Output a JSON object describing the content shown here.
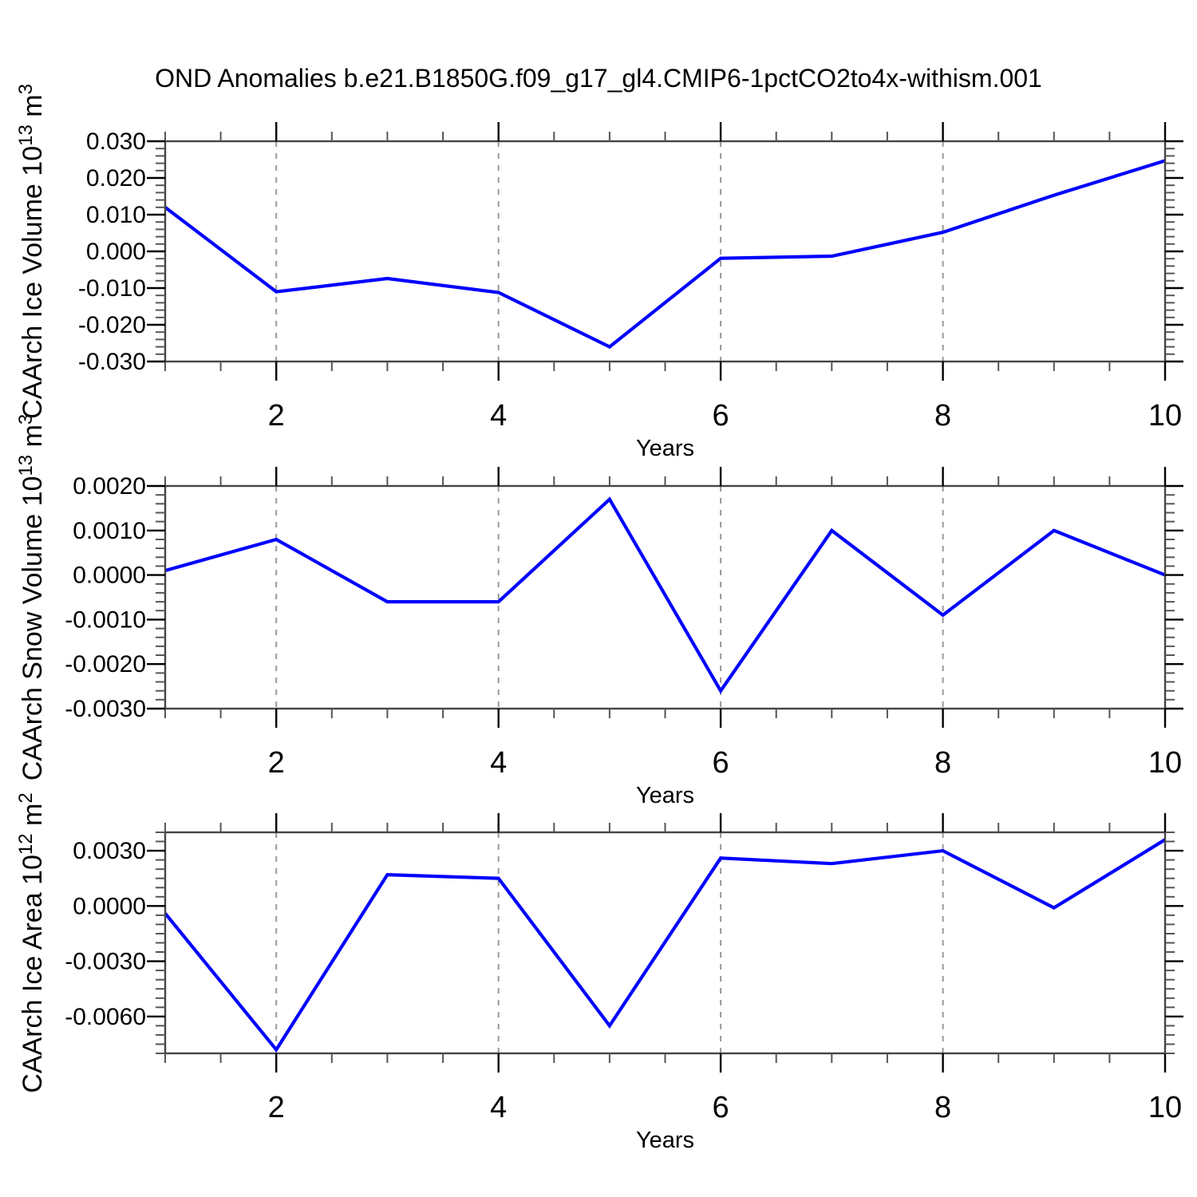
{
  "title": "OND Anomalies b.e21.B1850G.f09_g17_gl4.CMIP6-1pctCO2to4x-withism.001",
  "colors": {
    "line": "#0000ff",
    "grid": "#999999",
    "frame": "#444444",
    "tick_major": "#000000",
    "tick_minor": "#555555",
    "text": "#000000"
  },
  "chart_data": [
    {
      "id": "ice-volume",
      "type": "line",
      "ylabel": "CAArch Ice Volume 10^13 m^3",
      "ylabel_rich": [
        {
          "t": "CAArch Ice Volume 10"
        },
        {
          "t": "13",
          "sup": true
        },
        {
          "t": " m"
        },
        {
          "t": "3",
          "sup": true
        }
      ],
      "xlabel": "Years",
      "x": [
        1,
        2,
        3,
        4,
        5,
        6,
        7,
        8,
        9,
        10
      ],
      "values": [
        0.012,
        -0.011,
        -0.0074,
        -0.0112,
        -0.026,
        -0.0019,
        -0.0013,
        0.0052,
        0.0153,
        0.0247
      ],
      "xlim": [
        1,
        10
      ],
      "ylim": [
        -0.03,
        0.03
      ],
      "yticks": {
        "values": [
          0.03,
          0.02,
          0.01,
          0,
          -0.01,
          -0.02,
          -0.03
        ],
        "labels": [
          "0.030",
          "0.020",
          "0.010",
          "0.000",
          "-0.010",
          "-0.020",
          "-0.030"
        ],
        "minor_step": 0.002
      },
      "xticks": {
        "values": [
          2,
          4,
          6,
          8,
          10
        ],
        "labels": [
          "2",
          "4",
          "6",
          "8",
          "10"
        ],
        "minor_step": 0.5
      },
      "grid_x": [
        2,
        4,
        6,
        8
      ],
      "grid_y": []
    },
    {
      "id": "snow-volume",
      "type": "line",
      "ylabel": "CAArch Snow Volume 10^13 m^3",
      "ylabel_rich": [
        {
          "t": "CAArch Snow Volume 10"
        },
        {
          "t": "13",
          "sup": true
        },
        {
          "t": " m"
        },
        {
          "t": "3",
          "sup": true
        }
      ],
      "xlabel": "Years",
      "x": [
        1,
        2,
        3,
        4,
        5,
        6,
        7,
        8,
        9,
        10
      ],
      "values": [
        0.0001,
        0.0008,
        -0.0006,
        -0.0006,
        0.0017,
        -0.0026,
        0.001,
        -0.0009,
        0.001,
        0.0
      ],
      "xlim": [
        1,
        10
      ],
      "ylim": [
        -0.003,
        0.002
      ],
      "yticks": {
        "values": [
          0.002,
          0.001,
          0,
          -0.001,
          -0.002,
          -0.003
        ],
        "labels": [
          "0.0020",
          "0.0010",
          "0.0000",
          "-0.0010",
          "-0.0020",
          "-0.0030"
        ],
        "minor_step": 0.0002
      },
      "xticks": {
        "values": [
          2,
          4,
          6,
          8,
          10
        ],
        "labels": [
          "2",
          "4",
          "6",
          "8",
          "10"
        ],
        "minor_step": 0.5
      },
      "grid_x": [
        2,
        4,
        6,
        8
      ],
      "grid_y": []
    },
    {
      "id": "ice-area",
      "type": "line",
      "ylabel": "CAArch Ice Area 10^12 m^2",
      "ylabel_rich": [
        {
          "t": "CAArch Ice Area 10"
        },
        {
          "t": "12",
          "sup": true
        },
        {
          "t": " m"
        },
        {
          "t": "2",
          "sup": true
        }
      ],
      "xlabel": "Years",
      "x": [
        1,
        2,
        3,
        4,
        5,
        6,
        7,
        8,
        9,
        10
      ],
      "values": [
        -0.0004,
        -0.0078,
        0.0017,
        0.0015,
        -0.0065,
        0.0026,
        0.0023,
        0.003,
        -0.0001,
        0.0036
      ],
      "xlim": [
        1,
        10
      ],
      "ylim": [
        -0.008,
        0.004
      ],
      "yticks": {
        "values": [
          0.003,
          0,
          -0.003,
          -0.006
        ],
        "labels": [
          "0.0030",
          "0.0000",
          "-0.0030",
          "-0.0060"
        ],
        "minor_step": 0.0005
      },
      "xticks": {
        "values": [
          2,
          4,
          6,
          8,
          10
        ],
        "labels": [
          "2",
          "4",
          "6",
          "8",
          "10"
        ],
        "minor_step": 0.5
      },
      "grid_x": [
        2,
        4,
        6,
        8
      ],
      "grid_y": []
    }
  ]
}
